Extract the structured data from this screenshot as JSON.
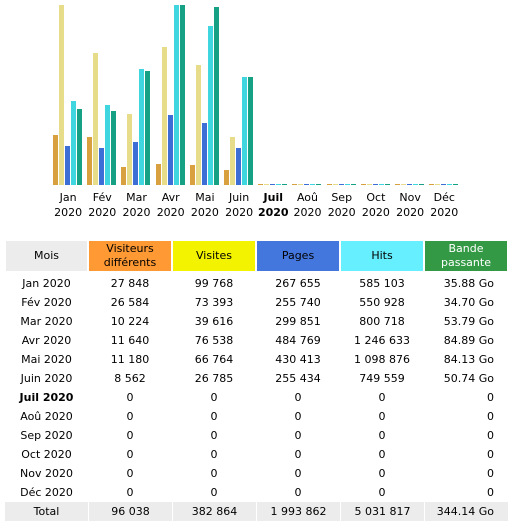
{
  "chart_data": {
    "type": "bar",
    "categories": [
      "Jan 2020",
      "Fév 2020",
      "Mar 2020",
      "Avr 2020",
      "Mai 2020",
      "Juin 2020",
      "Juil 2020",
      "Aoû 2020",
      "Sep 2020",
      "Oct 2020",
      "Nov 2020",
      "Déc 2020"
    ],
    "highlight_index": 6,
    "series": [
      {
        "name": "Visiteurs différents",
        "color": "#d9a040",
        "values": [
          27848,
          26584,
          10224,
          11640,
          11180,
          8562,
          0,
          0,
          0,
          0,
          0,
          0
        ],
        "value_labels": [
          "27 848",
          "26 584",
          "10 224",
          "11 640",
          "11 180",
          "8 562",
          "0",
          "0",
          "0",
          "0",
          "0",
          "0"
        ]
      },
      {
        "name": "Visites",
        "color": "#e6dc8a",
        "values": [
          99768,
          73393,
          39616,
          76538,
          66764,
          26785,
          0,
          0,
          0,
          0,
          0,
          0
        ],
        "value_labels": [
          "99 768",
          "73 393",
          "39 616",
          "76 538",
          "66 764",
          "26 785",
          "0",
          "0",
          "0",
          "0",
          "0",
          "0"
        ]
      },
      {
        "name": "Pages",
        "color": "#3c6ed6",
        "values": [
          267655,
          255740,
          299851,
          484769,
          430413,
          255434,
          0,
          0,
          0,
          0,
          0,
          0
        ],
        "value_labels": [
          "267 655",
          "255 740",
          "299 851",
          "484 769",
          "430 413",
          "255 434",
          "0",
          "0",
          "0",
          "0",
          "0",
          "0"
        ]
      },
      {
        "name": "Hits",
        "color": "#3fd6df",
        "values": [
          585103,
          550928,
          800718,
          1246633,
          1098876,
          749559,
          0,
          0,
          0,
          0,
          0,
          0
        ],
        "value_labels": [
          "585 103",
          "550 928",
          "800 718",
          "1 246 633",
          "1 098 876",
          "749 559",
          "0",
          "0",
          "0",
          "0",
          "0",
          "0"
        ]
      },
      {
        "name": "Bande passante",
        "color": "#17a184",
        "values": [
          35.88,
          34.7,
          53.79,
          84.89,
          84.13,
          50.74,
          0,
          0,
          0,
          0,
          0,
          0
        ],
        "value_labels": [
          "35.88 Go",
          "34.70 Go",
          "53.79 Go",
          "84.89 Go",
          "84.13 Go",
          "50.74 Go",
          "0",
          "0",
          "0",
          "0",
          "0",
          "0"
        ]
      }
    ]
  },
  "table": {
    "header": "Mois",
    "total": "Total",
    "totals": [
      "96 038",
      "382 864",
      "1 993 862",
      "5 031 817",
      "344.14 Go"
    ]
  }
}
